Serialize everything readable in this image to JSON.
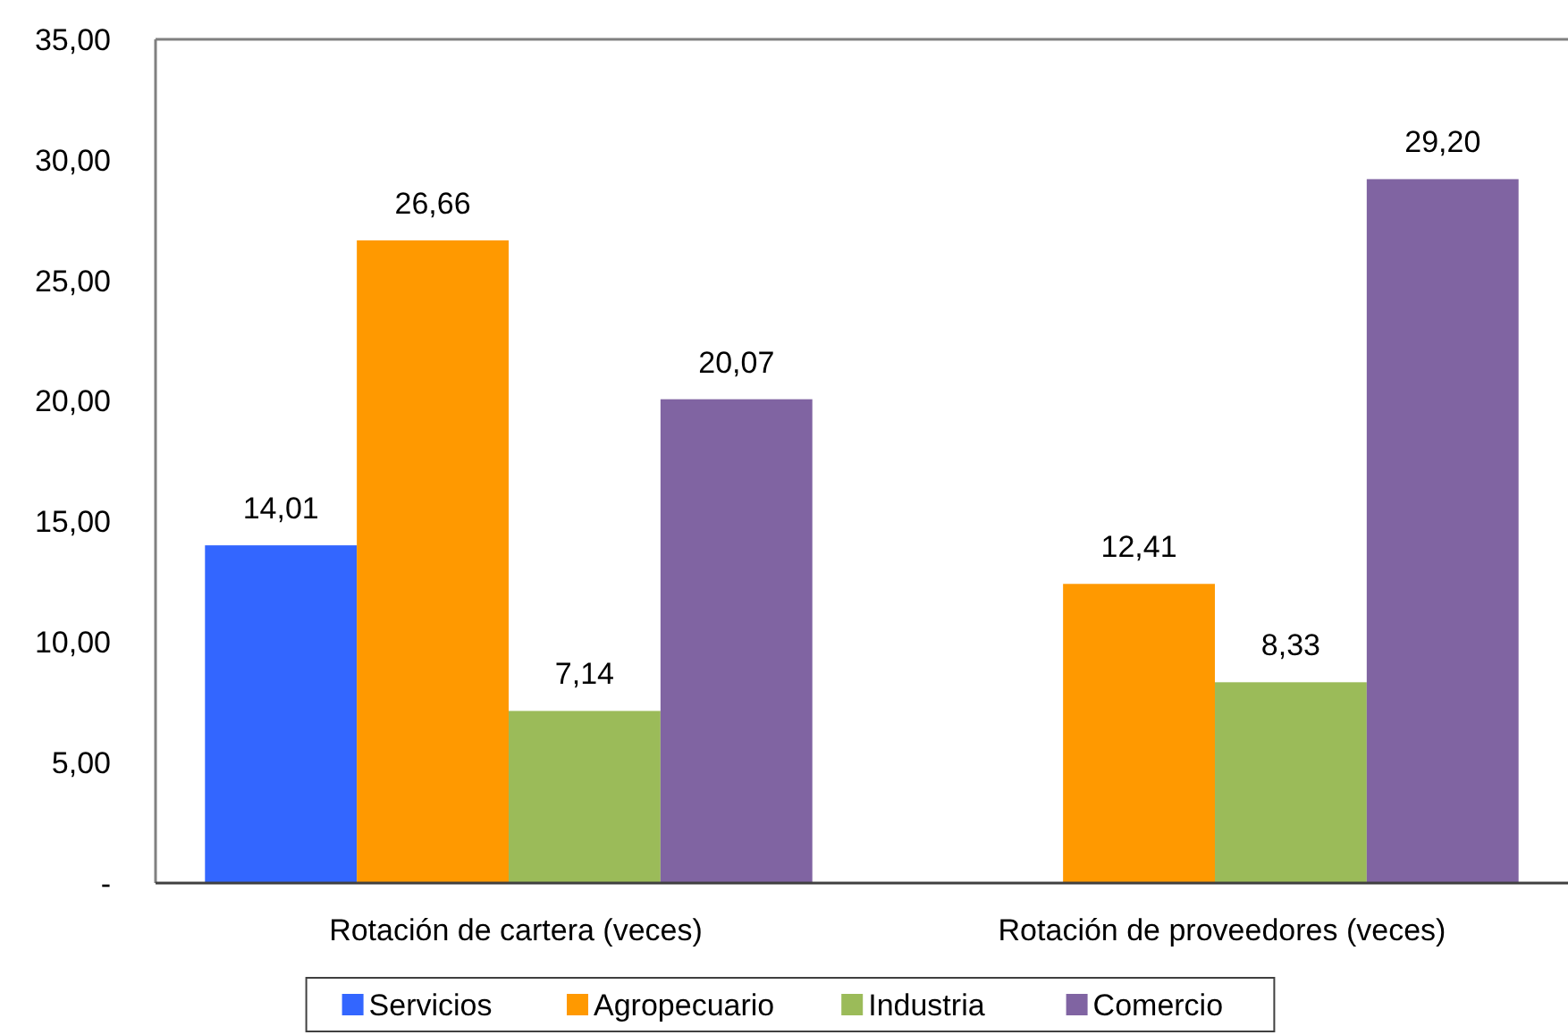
{
  "chart_data": {
    "type": "bar",
    "categories": [
      "Rotación de cartera (veces)",
      "Rotación de proveedores (veces)"
    ],
    "series": [
      {
        "name": "Servicios",
        "color": "#3366ff",
        "values": [
          14.01,
          null
        ],
        "value_labels": [
          "14,01",
          null
        ]
      },
      {
        "name": "Agropecuario",
        "color": "#ff9900",
        "values": [
          26.66,
          12.41
        ],
        "value_labels": [
          "26,66",
          "12,41"
        ]
      },
      {
        "name": "Industria",
        "color": "#9bbb59",
        "values": [
          7.14,
          8.33
        ],
        "value_labels": [
          "7,14",
          "8,33"
        ]
      },
      {
        "name": "Comercio",
        "color": "#8064a2",
        "values": [
          20.07,
          29.2
        ],
        "value_labels": [
          "20,07",
          "29,20"
        ]
      }
    ],
    "ylim": [
      0,
      35
    ],
    "yticks": [
      {
        "value": 0,
        "label": "-"
      },
      {
        "value": 5,
        "label": "5,00"
      },
      {
        "value": 10,
        "label": "10,00"
      },
      {
        "value": 15,
        "label": "15,00"
      },
      {
        "value": 20,
        "label": "20,00"
      },
      {
        "value": 25,
        "label": "25,00"
      },
      {
        "value": 30,
        "label": "30,00"
      },
      {
        "value": 35,
        "label": "35,00"
      }
    ],
    "legend": "bottom"
  }
}
